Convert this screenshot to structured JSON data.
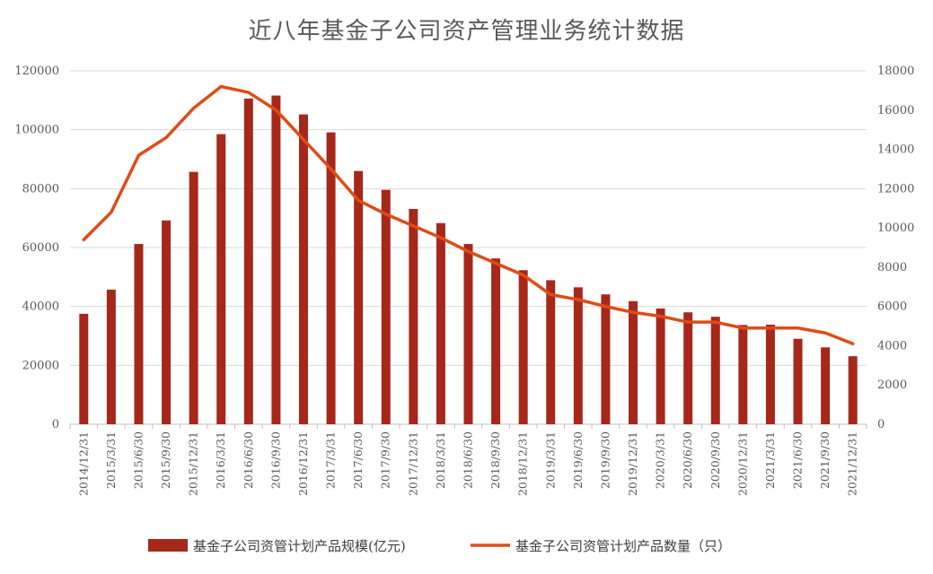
{
  "chart_data": {
    "type": "bar",
    "title": "近八年基金子公司资产管理业务统计数据",
    "categories": [
      "2014/12/31",
      "2015/3/31",
      "2015/6/30",
      "2015/9/30",
      "2015/12/31",
      "2016/3/31",
      "2016/6/30",
      "2016/9/30",
      "2016/12/31",
      "2017/3/31",
      "2017/6/30",
      "2017/9/30",
      "2017/12/31",
      "2018/3/31",
      "2018/6/30",
      "2018/9/30",
      "2018/12/31",
      "2019/3/31",
      "2019/6/30",
      "2019/9/30",
      "2019/12/31",
      "2020/3/31",
      "2020/6/30",
      "2020/9/30",
      "2020/12/31",
      "2021/3/31",
      "2021/6/30",
      "2021/9/30",
      "2021/12/31"
    ],
    "series": [
      {
        "name": "基金子公司资管计划产品规模(亿元)",
        "type": "bar",
        "axis": "left",
        "color": "#A5281B",
        "values": [
          37500,
          45700,
          61200,
          69200,
          85700,
          98500,
          110600,
          111600,
          105200,
          99100,
          86000,
          79600,
          73100,
          68300,
          61200,
          56300,
          52300,
          48900,
          46500,
          44100,
          41800,
          39300,
          38000,
          36500,
          33700,
          33800,
          29000,
          26100,
          23100
        ]
      },
      {
        "name": "基金子公司资管计划产品数量（只）",
        "type": "line",
        "axis": "right",
        "color": "#E04B16",
        "values": [
          9400,
          10800,
          13700,
          14600,
          16100,
          17200,
          16900,
          16000,
          14500,
          13000,
          11400,
          10700,
          10100,
          9500,
          8800,
          8200,
          7600,
          6600,
          6350,
          6000,
          5700,
          5500,
          5200,
          5200,
          4900,
          4900,
          4900,
          4650,
          4100
        ]
      }
    ],
    "y_left": {
      "ylim": [
        0,
        120000
      ],
      "ticks": [
        "0",
        "20000",
        "40000",
        "60000",
        "80000",
        "100000",
        "120000"
      ]
    },
    "y_right": {
      "ylim": [
        0,
        18000
      ],
      "ticks": [
        "0",
        "2000",
        "4000",
        "6000",
        "8000",
        "10000",
        "12000",
        "14000",
        "16000",
        "18000"
      ]
    },
    "grid": "horizontal",
    "legend_position": "bottom"
  }
}
